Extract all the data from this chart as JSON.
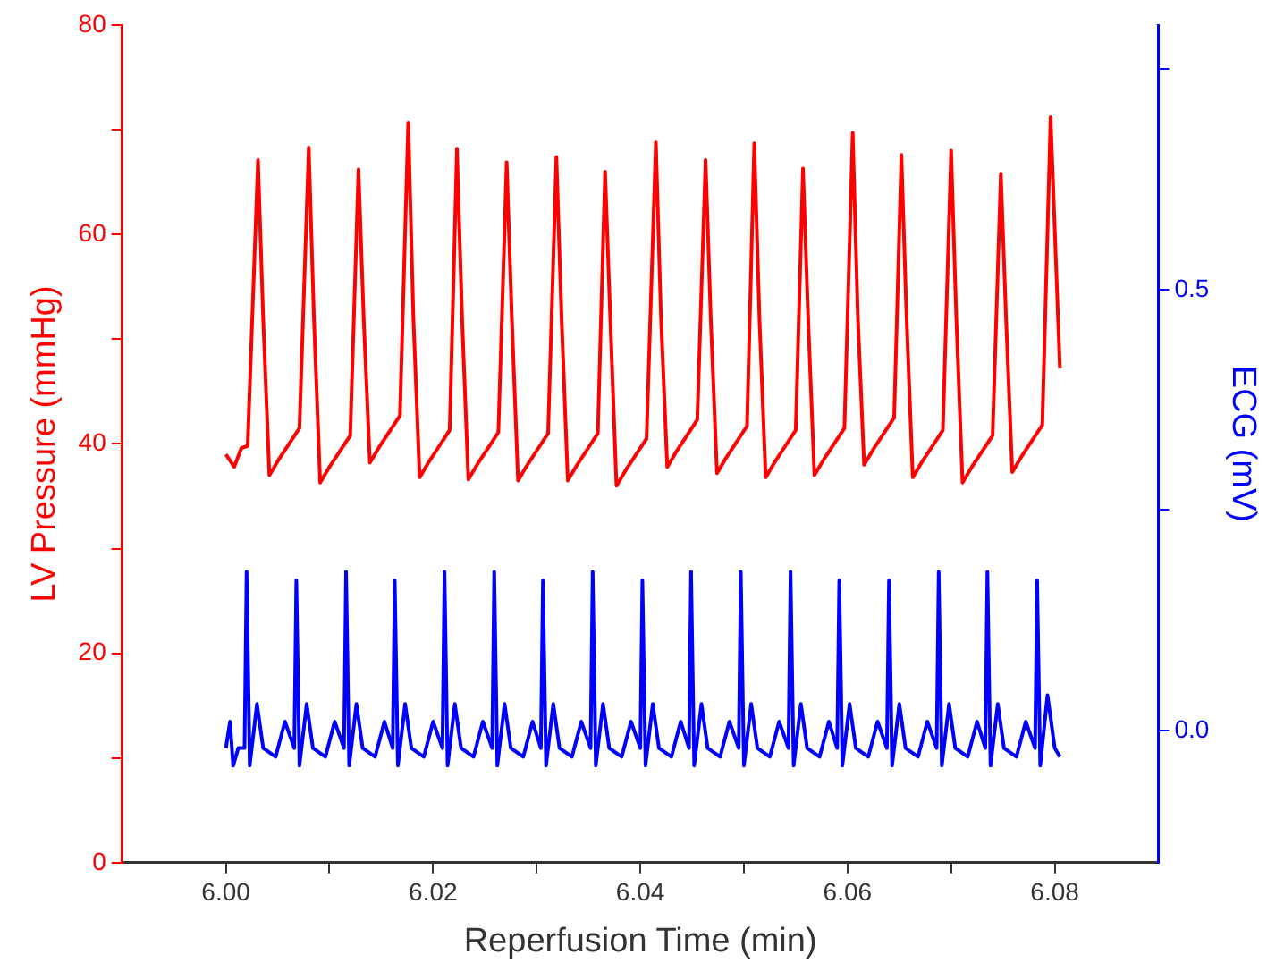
{
  "chart_data": {
    "type": "line",
    "xlabel": "Reperfusion Time (min)",
    "ylabel": "LV Pressure (mmHg)",
    "y2label": "ECG (mV)",
    "xlim": [
      5.99,
      6.09
    ],
    "xticks": [
      {
        "value": 6.0,
        "label": "6.00"
      },
      {
        "value": 6.01,
        "label": null
      },
      {
        "value": 6.02,
        "label": "6.02"
      },
      {
        "value": 6.03,
        "label": null
      },
      {
        "value": 6.04,
        "label": "6.04"
      },
      {
        "value": 6.05,
        "label": null
      },
      {
        "value": 6.06,
        "label": "6.06"
      },
      {
        "value": 6.07,
        "label": null
      },
      {
        "value": 6.08,
        "label": "6.08"
      }
    ],
    "ylim": [
      0,
      80
    ],
    "yticks": [
      0,
      {
        "value": 10,
        "label": null
      },
      20,
      {
        "value": 30,
        "label": null
      },
      40,
      {
        "value": 50,
        "label": null
      },
      60,
      {
        "value": 70,
        "label": null
      },
      80
    ],
    "y2lim": [
      -0.15,
      0.8
    ],
    "y2ticks": [
      {
        "value": 0,
        "label": "0.0"
      },
      {
        "value": 0.25,
        "label": null
      },
      0.5,
      {
        "value": 0.75,
        "label": null
      }
    ],
    "grid": false,
    "legend": false,
    "marker": "none",
    "line_style": "solid",
    "series": [
      {
        "color": "#ff0000",
        "axis": "y",
        "x": [
          6.0,
          6.0008,
          6.0015,
          6.0021,
          6.0031,
          6.0036,
          6.0042,
          6.0051,
          6.0061,
          6.0071,
          6.008,
          6.0085,
          6.0091,
          6.01,
          6.011,
          6.012,
          6.0128,
          6.0133,
          6.0139,
          6.0148,
          6.0158,
          6.0168,
          6.0176,
          6.0181,
          6.0187,
          6.0196,
          6.0206,
          6.0216,
          6.0223,
          6.0228,
          6.0234,
          6.0243,
          6.0253,
          6.0263,
          6.0271,
          6.0276,
          6.0282,
          6.0291,
          6.0301,
          6.0311,
          6.0319,
          6.0324,
          6.033,
          6.0339,
          6.0349,
          6.0359,
          6.0366,
          6.0371,
          6.0377,
          6.0386,
          6.0396,
          6.0406,
          6.0415,
          6.042,
          6.0426,
          6.0435,
          6.0445,
          6.0455,
          6.0463,
          6.0468,
          6.0474,
          6.0483,
          6.0493,
          6.0503,
          6.051,
          6.0515,
          6.0521,
          6.053,
          6.054,
          6.055,
          6.0557,
          6.0562,
          6.0568,
          6.0577,
          6.0587,
          6.0597,
          6.0605,
          6.061,
          6.0616,
          6.0625,
          6.0635,
          6.0645,
          6.0652,
          6.0657,
          6.0663,
          6.0672,
          6.0682,
          6.0692,
          6.07,
          6.0705,
          6.0711,
          6.072,
          6.073,
          6.074,
          6.0748,
          6.0753,
          6.0759,
          6.0768,
          6.0778,
          6.0788,
          6.0796,
          6.0805
        ],
        "values": [
          39.0,
          37.8,
          39.6,
          39.8,
          67.1,
          52,
          37.0,
          38.5,
          40.0,
          41.5,
          68.3,
          52,
          36.3,
          37.8,
          39.3,
          40.8,
          66.2,
          52,
          38.2,
          39.7,
          41.2,
          42.7,
          70.7,
          52,
          36.8,
          38.3,
          39.8,
          41.3,
          68.2,
          52,
          36.6,
          38.1,
          39.6,
          41.1,
          66.9,
          52,
          36.5,
          38.0,
          39.5,
          41.0,
          67.4,
          52,
          36.5,
          38.0,
          39.5,
          41.0,
          66.0,
          52,
          36.0,
          37.5,
          39.0,
          40.5,
          68.8,
          52,
          37.8,
          39.3,
          40.8,
          42.3,
          67.1,
          52,
          37.2,
          38.7,
          40.2,
          41.7,
          68.7,
          52,
          36.8,
          38.3,
          39.8,
          41.3,
          66.3,
          52,
          37.0,
          38.5,
          40.0,
          41.5,
          69.7,
          52,
          38.0,
          39.5,
          41.0,
          42.5,
          67.6,
          52,
          36.8,
          38.3,
          39.8,
          41.3,
          68.0,
          52,
          36.3,
          37.8,
          39.3,
          40.8,
          65.8,
          52,
          37.3,
          38.8,
          40.3,
          41.8,
          71.2,
          47.2
        ]
      },
      {
        "color": "#0000ff",
        "axis": "y2",
        "x": [
          6.0,
          6.0004,
          6.0007,
          6.0012,
          6.0018,
          6.002,
          6.0023,
          6.003,
          6.0036,
          6.0048,
          6.0057,
          6.0066,
          6.0068,
          6.0071,
          6.0078,
          6.0084,
          6.0096,
          6.0105,
          6.0114,
          6.0116,
          6.0119,
          6.0126,
          6.0132,
          6.0144,
          6.0153,
          6.0161,
          6.0163,
          6.0166,
          6.0173,
          6.0179,
          6.0191,
          6.02,
          6.0209,
          6.0211,
          6.0214,
          6.0221,
          6.0227,
          6.0239,
          6.0248,
          6.0257,
          6.0259,
          6.0262,
          6.0269,
          6.0275,
          6.0287,
          6.0296,
          6.0304,
          6.0306,
          6.0309,
          6.0316,
          6.0322,
          6.0334,
          6.0343,
          6.0352,
          6.0354,
          6.0357,
          6.0364,
          6.037,
          6.0382,
          6.0391,
          6.04,
          6.0402,
          6.0405,
          6.0412,
          6.0418,
          6.043,
          6.0439,
          6.0447,
          6.0449,
          6.0452,
          6.0459,
          6.0465,
          6.0477,
          6.0486,
          6.0495,
          6.0497,
          6.05,
          6.0507,
          6.0513,
          6.0525,
          6.0534,
          6.0543,
          6.0545,
          6.0548,
          6.0555,
          6.0561,
          6.0573,
          6.0582,
          6.059,
          6.0592,
          6.0595,
          6.0602,
          6.0608,
          6.062,
          6.0629,
          6.0638,
          6.064,
          6.0643,
          6.065,
          6.0656,
          6.0668,
          6.0677,
          6.0686,
          6.0688,
          6.0691,
          6.0698,
          6.0704,
          6.0716,
          6.0725,
          6.0733,
          6.0735,
          6.0738,
          6.0745,
          6.0751,
          6.0763,
          6.0772,
          6.0781,
          6.0783,
          6.0786,
          6.0793,
          6.08,
          6.0805
        ],
        "values": [
          -0.02,
          0.01,
          -0.04,
          -0.02,
          -0.02,
          0.18,
          -0.04,
          0.03,
          -0.02,
          -0.03,
          0.01,
          -0.02,
          0.17,
          -0.04,
          0.03,
          -0.02,
          -0.03,
          0.01,
          -0.02,
          0.18,
          -0.04,
          0.03,
          -0.02,
          -0.03,
          0.01,
          -0.02,
          0.17,
          -0.04,
          0.03,
          -0.02,
          -0.03,
          0.01,
          -0.02,
          0.18,
          -0.04,
          0.03,
          -0.02,
          -0.03,
          0.01,
          -0.02,
          0.18,
          -0.04,
          0.03,
          -0.02,
          -0.03,
          0.01,
          -0.02,
          0.17,
          -0.04,
          0.03,
          -0.02,
          -0.03,
          0.01,
          -0.02,
          0.18,
          -0.04,
          0.03,
          -0.02,
          -0.03,
          0.01,
          -0.02,
          0.17,
          -0.04,
          0.03,
          -0.02,
          -0.03,
          0.01,
          -0.02,
          0.18,
          -0.04,
          0.03,
          -0.02,
          -0.03,
          0.01,
          -0.02,
          0.18,
          -0.04,
          0.03,
          -0.02,
          -0.03,
          0.01,
          -0.02,
          0.18,
          -0.04,
          0.03,
          -0.02,
          -0.03,
          0.01,
          -0.02,
          0.17,
          -0.04,
          0.03,
          -0.02,
          -0.03,
          0.01,
          -0.02,
          0.17,
          -0.04,
          0.03,
          -0.02,
          -0.03,
          0.01,
          -0.02,
          0.18,
          -0.04,
          0.03,
          -0.02,
          -0.03,
          0.01,
          -0.02,
          0.18,
          -0.04,
          0.03,
          -0.02,
          -0.03,
          0.01,
          -0.02,
          0.17,
          -0.04,
          0.04,
          -0.02,
          -0.03
        ]
      }
    ]
  }
}
